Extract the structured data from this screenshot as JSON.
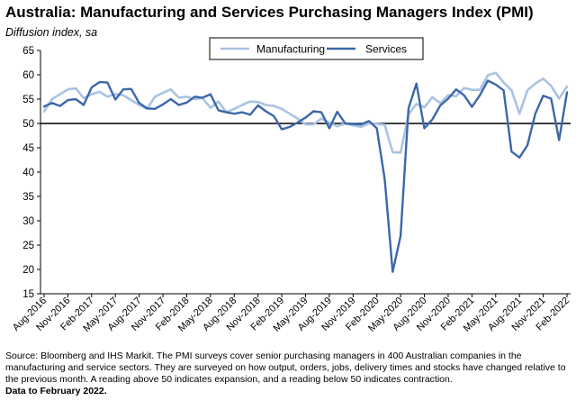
{
  "title": "Australia:  Manufacturing and Services Purchasing Managers Index (PMI)",
  "subtitle": "Diffusion index, sa",
  "footer": {
    "source": "Source: Bloomberg and IHS Markit.  The PMI surveys cover senior purchasing managers in 400 Australian companies in the manufacturing and service sectors.  They are surveyed on how output, orders, jobs, delivery times and stocks have changed relative to the previous month.  A reading above 50 indicates expansion, and a reading below 50 indicates contraction.",
    "data_note": "Data to February 2022."
  },
  "chart_data": {
    "type": "line",
    "title": "Australia:  Manufacturing and Services Purchasing Managers Index (PMI)",
    "ylabel": "Diffusion index, sa",
    "xlabel": "",
    "ylim": [
      15,
      65
    ],
    "yticks": [
      15,
      20,
      25,
      30,
      35,
      40,
      45,
      50,
      55,
      60,
      65
    ],
    "reference_line": 50,
    "grid": false,
    "legend_position": "top-center",
    "x": [
      "Aug-2016",
      "Sep-2016",
      "Oct-2016",
      "Nov-2016",
      "Dec-2016",
      "Jan-2017",
      "Feb-2017",
      "Mar-2017",
      "Apr-2017",
      "May-2017",
      "Jun-2017",
      "Jul-2017",
      "Aug-2017",
      "Sep-2017",
      "Oct-2017",
      "Nov-2017",
      "Dec-2017",
      "Jan-2018",
      "Feb-2018",
      "Mar-2018",
      "Apr-2018",
      "May-2018",
      "Jun-2018",
      "Jul-2018",
      "Aug-2018",
      "Sep-2018",
      "Oct-2018",
      "Nov-2018",
      "Dec-2018",
      "Jan-2019",
      "Feb-2019",
      "Mar-2019",
      "Apr-2019",
      "May-2019",
      "Jun-2019",
      "Jul-2019",
      "Aug-2019",
      "Sep-2019",
      "Oct-2019",
      "Nov-2019",
      "Dec-2019",
      "Jan-2020",
      "Feb-2020",
      "Mar-2020",
      "Apr-2020",
      "May-2020",
      "Jun-2020",
      "Jul-2020",
      "Aug-2020",
      "Sep-2020",
      "Oct-2020",
      "Nov-2020",
      "Dec-2020",
      "Jan-2021",
      "Feb-2021",
      "Mar-2021",
      "Apr-2021",
      "May-2021",
      "Jun-2021",
      "Jul-2021",
      "Aug-2021",
      "Sep-2021",
      "Oct-2021",
      "Nov-2021",
      "Dec-2021",
      "Jan-2022",
      "Feb-2022"
    ],
    "xtick_labels": [
      "Aug-2016",
      "Nov-2016",
      "Feb-2017",
      "May-2017",
      "Aug-2017",
      "Nov-2017",
      "Feb-2018",
      "May-2018",
      "Aug-2018",
      "Nov-2018",
      "Feb-2019",
      "May-2019",
      "Aug-2019",
      "Nov-2019",
      "Feb-2020",
      "May-2020",
      "Aug-2020",
      "Nov-2020",
      "Feb-2021",
      "May-2021",
      "Aug-2021",
      "Nov-2021",
      "Feb-2022"
    ],
    "series": [
      {
        "name": "Manufacturing",
        "color": "#a9c3e2",
        "values": [
          52.5,
          55.0,
          56.0,
          57.0,
          57.2,
          55.2,
          56.0,
          56.5,
          55.5,
          56.0,
          55.8,
          54.8,
          53.8,
          53.0,
          55.5,
          56.3,
          57.0,
          55.3,
          55.5,
          55.0,
          55.2,
          53.2,
          54.5,
          52.3,
          53.0,
          53.8,
          54.5,
          54.4,
          53.8,
          53.6,
          53.0,
          52.0,
          51.0,
          49.8,
          49.8,
          51.0,
          50.2,
          49.4,
          50.0,
          49.6,
          49.3,
          50.0,
          49.9,
          49.7,
          44.1,
          44.0,
          51.9,
          54.0,
          53.3,
          55.4,
          54.2,
          55.8,
          55.6,
          57.3,
          56.9,
          56.9,
          59.9,
          60.4,
          58.4,
          56.8,
          52.0,
          56.8,
          58.2,
          59.2,
          57.7,
          55.1,
          57.6
        ]
      },
      {
        "name": "Services",
        "color": "#3c67aa",
        "values": [
          53.5,
          54.2,
          53.6,
          54.8,
          55.0,
          53.8,
          57.4,
          58.5,
          58.4,
          54.9,
          57.0,
          57.1,
          54.2,
          53.1,
          53.0,
          53.9,
          55.0,
          53.8,
          54.3,
          55.5,
          55.3,
          56.0,
          52.7,
          52.3,
          52.0,
          52.3,
          51.8,
          53.7,
          52.5,
          51.5,
          48.8,
          49.3,
          50.2,
          51.2,
          52.5,
          52.3,
          49.0,
          52.4,
          50.0,
          49.9,
          49.8,
          50.5,
          49.0,
          38.5,
          19.5,
          26.9,
          53.1,
          58.2,
          49.0,
          50.8,
          53.7,
          55.1,
          57.0,
          55.8,
          53.4,
          55.8,
          58.8,
          58.0,
          56.8,
          44.2,
          43.0,
          45.5,
          52.0,
          55.7,
          55.1,
          46.6,
          56.4
        ]
      }
    ]
  }
}
